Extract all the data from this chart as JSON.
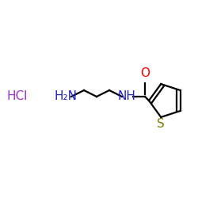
{
  "background_color": "#ffffff",
  "hcl_text": "HCl",
  "hcl_color": "#9933cc",
  "hcl_fontsize": 11,
  "nh2_text": "H₂N",
  "nh2_color": "#2222cc",
  "nh_text": "NH",
  "nh_color": "#2222cc",
  "o_text": "O",
  "o_color": "#ff0000",
  "s_text": "S",
  "s_color": "#808000",
  "bond_color": "#000000",
  "ring_bond_color": "#000000",
  "figsize": [
    2.5,
    2.5
  ],
  "dpi": 100
}
